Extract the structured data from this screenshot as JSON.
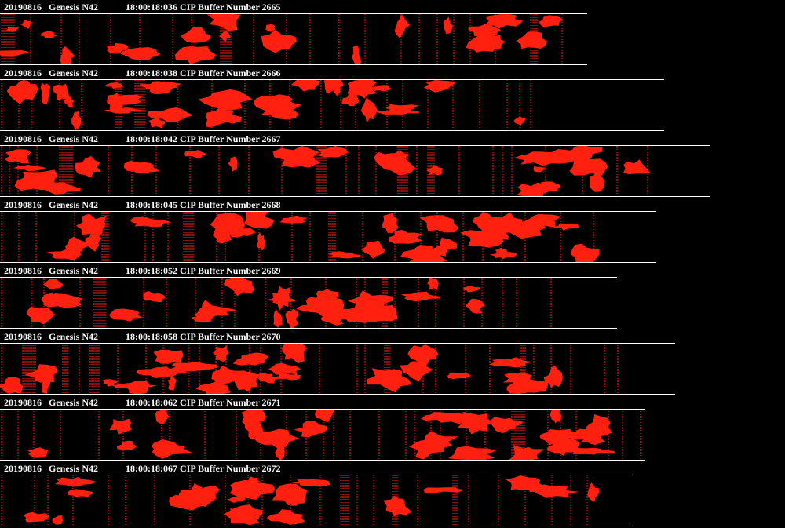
{
  "colors": {
    "background": "#000000",
    "particle": "#ff2010",
    "text": "#ffffff"
  },
  "buffers": [
    {
      "date": "20190816",
      "probe": "Genesis N42",
      "time": "18:00:18:036",
      "label": "CIP Buffer Number 2665"
    },
    {
      "date": "20190816",
      "probe": "Genesis N42",
      "time": "18:00:18:038",
      "label": "CIP Buffer Number 2666"
    },
    {
      "date": "20190816",
      "probe": "Genesis N42",
      "time": "18:00:18:042",
      "label": "CIP Buffer Number 2667"
    },
    {
      "date": "20190816",
      "probe": "Genesis N42",
      "time": "18:00:18:045",
      "label": "CIP Buffer Number 2668"
    },
    {
      "date": "20190816",
      "probe": "Genesis N42",
      "time": "18:00:18:052",
      "label": "CIP Buffer Number 2669"
    },
    {
      "date": "20190816",
      "probe": "Genesis N42",
      "time": "18:00:18:058",
      "label": "CIP Buffer Number 2670"
    },
    {
      "date": "20190816",
      "probe": "Genesis N42",
      "time": "18:00:18:062",
      "label": "CIP Buffer Number 2671"
    },
    {
      "date": "20190816",
      "probe": "Genesis N42",
      "time": "18:00:18:067",
      "label": "CIP Buffer Number 2672"
    }
  ]
}
